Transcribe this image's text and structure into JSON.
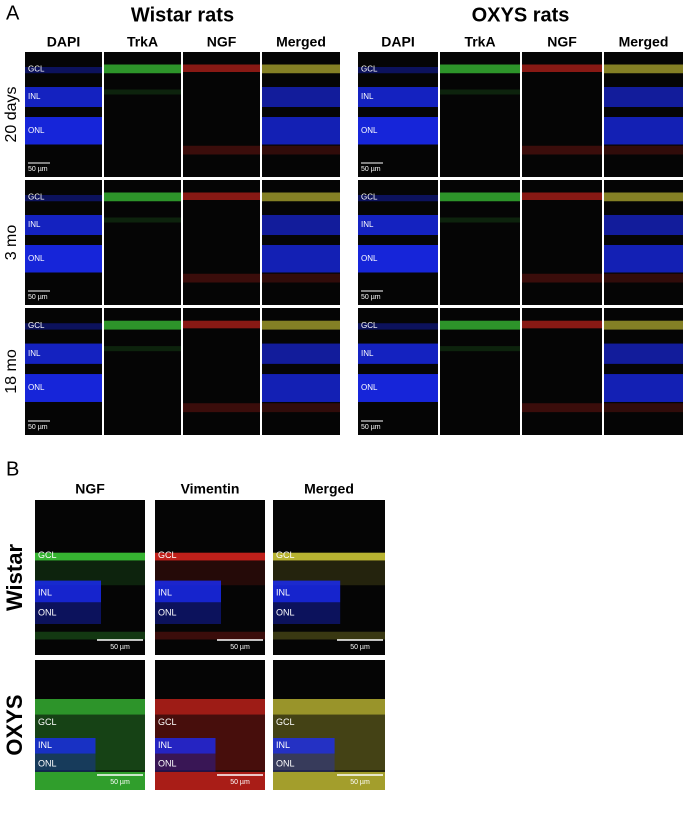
{
  "panel_a": {
    "label": "A",
    "groups": [
      {
        "title": "Wistar rats",
        "columns": [
          "DAPI",
          "TrkA",
          "NGF",
          "Merged"
        ],
        "rows": [
          {
            "label": "20 days",
            "layers": [
              "GCL",
              "INL",
              "ONL"
            ],
            "scale": "50 µm"
          },
          {
            "label": "3 mo",
            "layers": [
              "GCL",
              "INL",
              "ONL"
            ],
            "scale": "50 µm"
          },
          {
            "label": "18 mo",
            "layers": [
              "GCL",
              "INL",
              "ONL"
            ],
            "scale": "50 µm"
          }
        ]
      },
      {
        "title": "OXYS rats",
        "columns": [
          "DAPI",
          "TrkA",
          "NGF",
          "Merged"
        ],
        "rows": [
          {
            "layers": [
              "GCL",
              "INL",
              "ONL"
            ],
            "scale": "50 µm"
          },
          {
            "layers": [
              "GCL",
              "INL",
              "ONL"
            ],
            "scale": "50 µm"
          },
          {
            "layers": [
              "GCL",
              "INL",
              "ONL"
            ],
            "scale": "50 µm"
          }
        ]
      }
    ]
  },
  "panel_b": {
    "label": "B",
    "columns": [
      "NGF",
      "Vimentin",
      "Merged"
    ],
    "rows": [
      {
        "label": "Wistar",
        "layers": [
          "GCL",
          "INL",
          "ONL"
        ],
        "scale": "50 µm"
      },
      {
        "label": "OXYS",
        "layers": [
          "GCL",
          "INL",
          "ONL"
        ],
        "scale": "50 µm"
      }
    ]
  }
}
